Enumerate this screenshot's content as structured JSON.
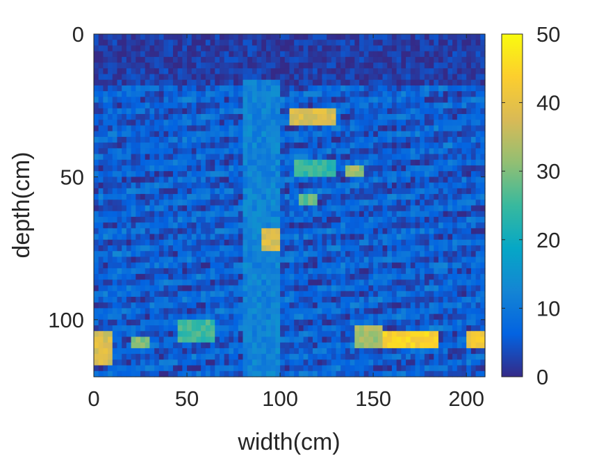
{
  "chart_data": {
    "type": "heatmap",
    "title": "",
    "xlabel": "width(cm)",
    "ylabel": "depth(cm)",
    "xlim": [
      0,
      210
    ],
    "ylim": [
      0,
      120
    ],
    "y_reversed": true,
    "x_ticks": [
      "0",
      "50",
      "100",
      "150",
      "200"
    ],
    "x_tick_values": [
      0,
      50,
      100,
      150,
      200
    ],
    "y_ticks": [
      "0",
      "50",
      "100"
    ],
    "y_tick_values": [
      0,
      50,
      100
    ],
    "colorbar": {
      "range": [
        0,
        50
      ],
      "ticks": [
        "0",
        "10",
        "20",
        "30",
        "40",
        "50"
      ],
      "tick_values": [
        0,
        10,
        20,
        30,
        40,
        50
      ],
      "colormap": "parula",
      "colormap_stops": [
        "#352a87",
        "#0363e1",
        "#1485d4",
        "#06a7c6",
        "#38b99e",
        "#92bf73",
        "#d9ba56",
        "#fcce2e",
        "#f9fb0e"
      ]
    },
    "background_level": 6,
    "features": [
      {
        "x": [
          0,
          210
        ],
        "y": [
          0,
          17
        ],
        "value": 2
      },
      {
        "x": [
          80,
          100
        ],
        "y": [
          17,
          120
        ],
        "value": 12
      },
      {
        "x": [
          105,
          130
        ],
        "y": [
          27,
          32
        ],
        "value": 38
      },
      {
        "x": [
          108,
          130
        ],
        "y": [
          44,
          49
        ],
        "value": 24
      },
      {
        "x": [
          135,
          145
        ],
        "y": [
          46,
          50
        ],
        "value": 32
      },
      {
        "x": [
          110,
          120
        ],
        "y": [
          56,
          60
        ],
        "value": 28
      },
      {
        "x": [
          90,
          100
        ],
        "y": [
          69,
          75
        ],
        "value": 38
      },
      {
        "x": [
          0,
          10
        ],
        "y": [
          104,
          115
        ],
        "value": 38
      },
      {
        "x": [
          20,
          30
        ],
        "y": [
          106,
          110
        ],
        "value": 30
      },
      {
        "x": [
          45,
          65
        ],
        "y": [
          100,
          108
        ],
        "value": 25
      },
      {
        "x": [
          140,
          155
        ],
        "y": [
          102,
          110
        ],
        "value": 33
      },
      {
        "x": [
          155,
          185
        ],
        "y": [
          104,
          110
        ],
        "value": 44
      },
      {
        "x": [
          200,
          210
        ],
        "y": [
          104,
          110
        ],
        "value": 42
      }
    ]
  }
}
